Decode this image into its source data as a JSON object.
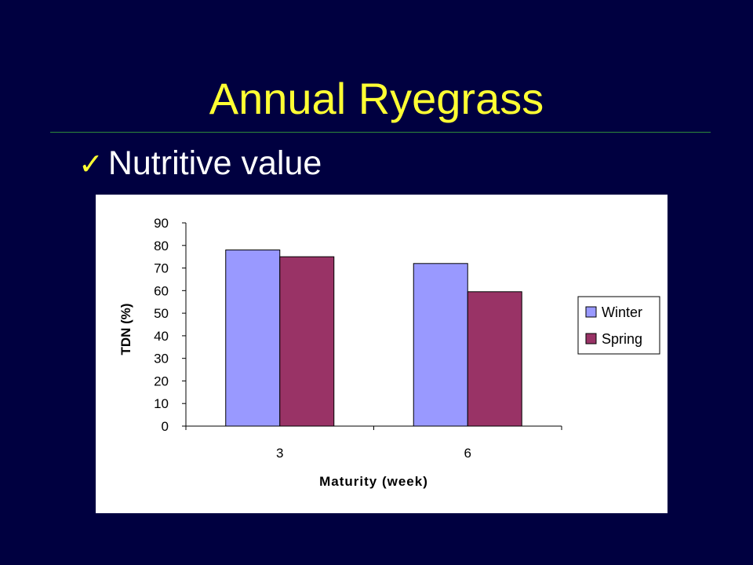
{
  "slide": {
    "title": "Annual Ryegrass",
    "bullet_mark": "✓",
    "bullet_text": "Nutritive value"
  },
  "colors": {
    "background": "#000040",
    "title": "#ffff33",
    "rule": "#2e8a3a",
    "winter": "#9999ff",
    "spring": "#993366"
  },
  "chart_data": {
    "type": "bar",
    "categories": [
      "3",
      "6"
    ],
    "series": [
      {
        "name": "Winter",
        "values": [
          78,
          72
        ],
        "color": "#9999ff"
      },
      {
        "name": "Spring",
        "values": [
          75,
          59.5
        ],
        "color": "#993366"
      }
    ],
    "xlabel": "Maturity (week)",
    "ylabel": "TDN (%)",
    "ylim": [
      0,
      90
    ],
    "yticks": [
      0,
      10,
      20,
      30,
      40,
      50,
      60,
      70,
      80,
      90
    ],
    "grid": false,
    "legend": "right"
  }
}
